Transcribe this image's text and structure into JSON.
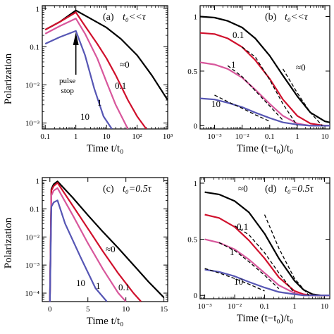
{
  "figure": {
    "ylabel_top": "Polarization",
    "ylabel_bottom": "Polarization"
  },
  "colors": {
    "approx0": "#000000",
    "p01": "#d0102c",
    "p1": "#d8579c",
    "p10": "#5656b4",
    "dashed": "#000000"
  },
  "chart_data": [
    {
      "id": "a",
      "type": "line",
      "panel_label": "(a)",
      "condition": "t₀<<τ",
      "xlabel": "Time  t/t₀",
      "xscale": "log",
      "yscale": "log",
      "xlim": [
        0.08,
        1000
      ],
      "ylim": [
        0.0007,
        1.2
      ],
      "xticks": [
        "0.1",
        "1",
        "10",
        "10²",
        "10³"
      ],
      "xtick_values": [
        0.1,
        1,
        10,
        100,
        1000
      ],
      "yticks": [
        "1",
        "0.1",
        "10⁻²",
        "10⁻³"
      ],
      "ytick_values": [
        1,
        0.1,
        0.01,
        0.001
      ],
      "annotation": "pulse\nstop",
      "annotation_lines": [
        "pulse",
        "stop"
      ],
      "series": [
        {
          "name": "≈0",
          "color_key": "approx0",
          "x": [
            0.1,
            0.3,
            1,
            3,
            10,
            30,
            100,
            300,
            1000
          ],
          "y": [
            0.28,
            0.45,
            0.9,
            0.55,
            0.32,
            0.16,
            0.06,
            0.018,
            0.004
          ]
        },
        {
          "name": "0.1",
          "color_key": "p01",
          "x": [
            0.1,
            0.3,
            1,
            2,
            5,
            10,
            20,
            50,
            100,
            200
          ],
          "y": [
            0.28,
            0.45,
            0.8,
            0.35,
            0.12,
            0.05,
            0.018,
            0.004,
            0.0015,
            0.0007
          ]
        },
        {
          "name": "1",
          "color_key": "p1",
          "x": [
            0.1,
            0.3,
            1,
            2,
            5,
            10,
            20,
            50
          ],
          "y": [
            0.22,
            0.35,
            0.55,
            0.22,
            0.05,
            0.012,
            0.003,
            0.0007
          ]
        },
        {
          "name": "10",
          "color_key": "p10",
          "x": [
            0.1,
            0.3,
            1,
            2,
            4,
            8,
            15
          ],
          "y": [
            0.12,
            0.18,
            0.26,
            0.06,
            0.008,
            0.0015,
            0.0007
          ]
        }
      ],
      "labels": [
        "≈0",
        "0.1",
        "1",
        "10"
      ]
    },
    {
      "id": "b",
      "type": "line",
      "panel_label": "(b)",
      "condition": "t₀<<τ",
      "xlabel": "Time  (t−t₀)/t₀",
      "xscale": "log",
      "yscale": "linear",
      "xlim": [
        0.0003,
        15
      ],
      "ylim": [
        -0.03,
        1.1
      ],
      "xticks": [
        "10⁻³",
        "10⁻²",
        "0.1",
        "1",
        "10"
      ],
      "xtick_values": [
        0.001,
        0.01,
        0.1,
        1,
        10
      ],
      "yticks": [
        "1",
        "0.5",
        "0"
      ],
      "ytick_values": [
        1,
        0.5,
        0
      ],
      "series": [
        {
          "name": "≈0",
          "color_key": "approx0",
          "x": [
            0.0003,
            0.001,
            0.003,
            0.01,
            0.03,
            0.1,
            0.3,
            1,
            3,
            10,
            15
          ],
          "y": [
            1.0,
            0.99,
            0.96,
            0.9,
            0.8,
            0.64,
            0.46,
            0.27,
            0.12,
            0.04,
            0.03
          ]
        },
        {
          "name": "0.1",
          "color_key": "p01",
          "x": [
            0.0003,
            0.001,
            0.003,
            0.01,
            0.03,
            0.1,
            0.3,
            1,
            3,
            10,
            15
          ],
          "y": [
            0.85,
            0.84,
            0.8,
            0.72,
            0.6,
            0.43,
            0.24,
            0.09,
            0.02,
            0.0,
            0.0
          ]
        },
        {
          "name": "1",
          "color_key": "p1",
          "x": [
            0.0003,
            0.001,
            0.003,
            0.01,
            0.03,
            0.1,
            0.3,
            1,
            3,
            10,
            15
          ],
          "y": [
            0.58,
            0.56,
            0.52,
            0.44,
            0.33,
            0.2,
            0.09,
            0.02,
            0.0,
            0.0,
            0.0
          ]
        },
        {
          "name": "10",
          "color_key": "p10",
          "x": [
            0.0003,
            0.001,
            0.003,
            0.01,
            0.03,
            0.1,
            0.3,
            1,
            3,
            10,
            15
          ],
          "y": [
            0.25,
            0.24,
            0.21,
            0.17,
            0.12,
            0.07,
            0.03,
            0.01,
            0.0,
            0.0,
            0.0
          ]
        }
      ],
      "fits": [
        {
          "x": [
            0.3,
            1,
            3,
            8
          ],
          "y": [
            0.52,
            0.3,
            0.12,
            0.0
          ]
        },
        {
          "x": [
            0.01,
            0.03,
            0.1,
            0.3,
            1
          ],
          "y": [
            0.72,
            0.63,
            0.42,
            0.2,
            0.0
          ]
        },
        {
          "x": [
            0.003,
            0.01,
            0.03,
            0.1,
            0.3
          ],
          "y": [
            0.55,
            0.45,
            0.32,
            0.18,
            0.05
          ]
        },
        {
          "x": [
            0.001,
            0.003,
            0.01,
            0.03,
            0.1
          ],
          "y": [
            0.28,
            0.22,
            0.16,
            0.1,
            0.04
          ]
        }
      ],
      "labels": [
        "≈0",
        "0.1",
        "1",
        "10"
      ]
    },
    {
      "id": "c",
      "type": "line",
      "panel_label": "(c)",
      "condition": "t₀=0.5τ",
      "xlabel": "Time  t/t₀",
      "xscale": "linear",
      "yscale": "log",
      "xlim": [
        -1,
        15.5
      ],
      "ylim": [
        5e-05,
        1.3
      ],
      "xticks": [
        "0",
        "5",
        "10",
        "15"
      ],
      "xtick_values": [
        0,
        5,
        10,
        15
      ],
      "yticks": [
        "1",
        "0.1",
        "10⁻²",
        "10⁻³",
        "10⁻⁴"
      ],
      "ytick_values": [
        1,
        0.1,
        0.01,
        0.001,
        0.0001
      ],
      "series": [
        {
          "name": "≈0",
          "color_key": "approx0",
          "x": [
            0,
            0.2,
            0.5,
            1,
            3,
            5,
            7,
            9,
            11,
            13,
            15
          ],
          "y": [
            5e-05,
            0.5,
            0.75,
            0.95,
            0.25,
            0.06,
            0.015,
            0.004,
            0.001,
            0.00025,
            7e-05
          ]
        },
        {
          "name": "0.1",
          "color_key": "p01",
          "x": [
            0,
            0.2,
            0.5,
            1,
            3,
            5,
            7,
            9,
            11,
            12
          ],
          "y": [
            5e-05,
            0.45,
            0.65,
            0.85,
            0.13,
            0.02,
            0.003,
            0.0005,
            0.0001,
            5e-05
          ]
        },
        {
          "name": "1",
          "color_key": "p1",
          "x": [
            0,
            0.2,
            0.5,
            1,
            3,
            5,
            7,
            9,
            10
          ],
          "y": [
            5e-05,
            0.3,
            0.45,
            0.55,
            0.06,
            0.006,
            0.0007,
            0.0001,
            5e-05
          ]
        },
        {
          "name": "10",
          "color_key": "p10",
          "x": [
            0,
            0.2,
            0.5,
            1,
            2,
            4,
            6,
            7.5
          ],
          "y": [
            5e-05,
            0.12,
            0.17,
            0.2,
            0.03,
            0.002,
            0.00015,
            5e-05
          ]
        }
      ],
      "labels": [
        "≈0",
        "10",
        "1",
        "0.1"
      ]
    },
    {
      "id": "d",
      "type": "line",
      "panel_label": "(d)",
      "condition": "t₀=0.5τ",
      "xlabel": "Time  (t−t₀)/t₀",
      "xscale": "log",
      "yscale": "linear",
      "xlim": [
        0.0007,
        15
      ],
      "ylim": [
        -0.03,
        1.05
      ],
      "xticks": [
        "10⁻³",
        "10⁻²",
        "0.1",
        "1",
        "10"
      ],
      "xtick_values": [
        0.001,
        0.01,
        0.1,
        1,
        10
      ],
      "yticks": [
        "1",
        "0.5",
        "0"
      ],
      "ytick_values": [
        1,
        0.5,
        0
      ],
      "series": [
        {
          "name": "≈0",
          "color_key": "approx0",
          "x": [
            0.001,
            0.003,
            0.01,
            0.03,
            0.1,
            0.3,
            1,
            2,
            4,
            8,
            15
          ],
          "y": [
            0.92,
            0.9,
            0.84,
            0.74,
            0.55,
            0.33,
            0.13,
            0.05,
            0.01,
            0.0,
            0.0
          ]
        },
        {
          "name": "0.1",
          "color_key": "p01",
          "x": [
            0.001,
            0.003,
            0.01,
            0.03,
            0.1,
            0.3,
            1,
            2,
            4,
            8,
            15
          ],
          "y": [
            0.72,
            0.69,
            0.61,
            0.49,
            0.33,
            0.16,
            0.04,
            0.01,
            0.0,
            0.0,
            0.0
          ]
        },
        {
          "name": "1",
          "color_key": "p1",
          "x": [
            0.001,
            0.003,
            0.01,
            0.03,
            0.1,
            0.3,
            1,
            2,
            4,
            8,
            15
          ],
          "y": [
            0.5,
            0.47,
            0.41,
            0.32,
            0.2,
            0.09,
            0.02,
            0.0,
            0.0,
            0.0,
            0.0
          ]
        },
        {
          "name": "10",
          "color_key": "p10",
          "x": [
            0.001,
            0.003,
            0.01,
            0.03,
            0.1,
            0.3,
            1,
            2,
            4,
            8,
            15
          ],
          "y": [
            0.23,
            0.21,
            0.17,
            0.12,
            0.07,
            0.03,
            0.01,
            0.0,
            0.0,
            0.0,
            0.0
          ]
        }
      ],
      "fits": [
        {
          "x": [
            0.1,
            0.3,
            1,
            3
          ],
          "y": [
            0.72,
            0.42,
            0.15,
            0.0
          ]
        },
        {
          "x": [
            0.01,
            0.03,
            0.1,
            0.3,
            1
          ],
          "y": [
            0.62,
            0.54,
            0.38,
            0.2,
            0.02
          ]
        },
        {
          "x": [
            0.003,
            0.01,
            0.03,
            0.1,
            0.3
          ],
          "y": [
            0.47,
            0.4,
            0.3,
            0.18,
            0.06
          ]
        },
        {
          "x": [
            0.001,
            0.003,
            0.01,
            0.03,
            0.1
          ],
          "y": [
            0.24,
            0.2,
            0.15,
            0.1,
            0.04
          ]
        }
      ],
      "labels": [
        "≈0",
        "0.1",
        "1",
        "10"
      ]
    }
  ]
}
